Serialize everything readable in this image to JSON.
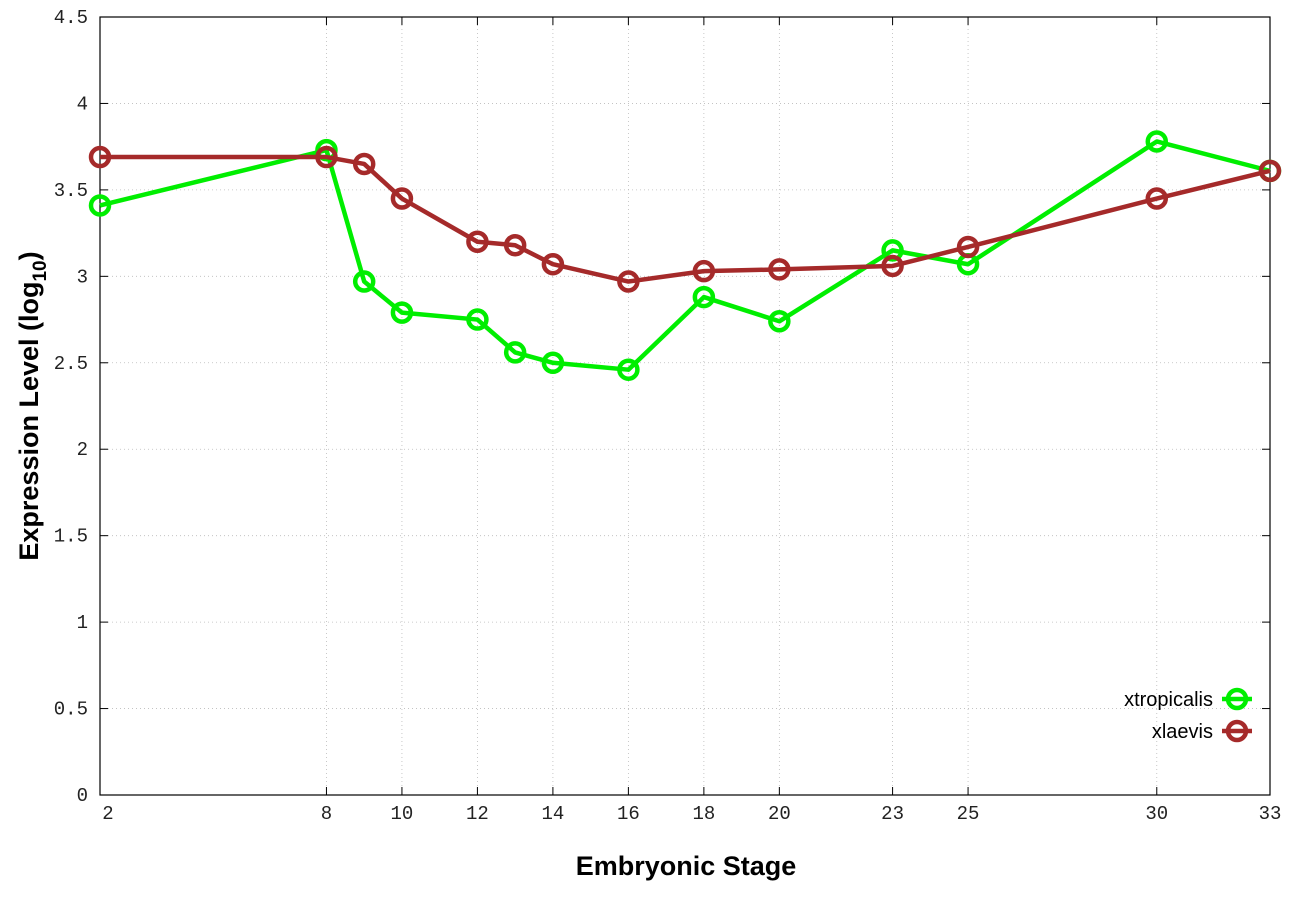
{
  "chart_data": {
    "type": "line",
    "title": "",
    "xlabel": "Embryonic Stage",
    "ylabel": {
      "main": "Expression Level (log",
      "sub": "10",
      "close": ")"
    },
    "x": [
      2,
      8,
      9,
      10,
      12,
      13,
      14,
      16,
      18,
      20,
      23,
      25,
      30,
      33
    ],
    "xticks": [
      2,
      8,
      10,
      12,
      14,
      16,
      18,
      20,
      23,
      25,
      30,
      33
    ],
    "yticks": [
      "0",
      "0.5",
      "1",
      "1.5",
      "2",
      "2.5",
      "3",
      "3.5",
      "4",
      "4.5"
    ],
    "xlim": [
      2,
      33
    ],
    "ylim": [
      0,
      4.5
    ],
    "grid": true,
    "legend_position": "bottom-right",
    "series": [
      {
        "name": "xtropicalis",
        "color": "#00ee00",
        "values": [
          3.41,
          3.73,
          2.97,
          2.79,
          2.75,
          2.56,
          2.5,
          2.46,
          2.88,
          2.74,
          3.15,
          3.07,
          3.78,
          3.61
        ]
      },
      {
        "name": "xlaevis",
        "color": "#a52a2a",
        "values": [
          3.69,
          3.69,
          3.65,
          3.45,
          3.2,
          3.18,
          3.07,
          2.97,
          3.03,
          3.04,
          3.06,
          3.17,
          3.45,
          3.61
        ]
      }
    ]
  }
}
